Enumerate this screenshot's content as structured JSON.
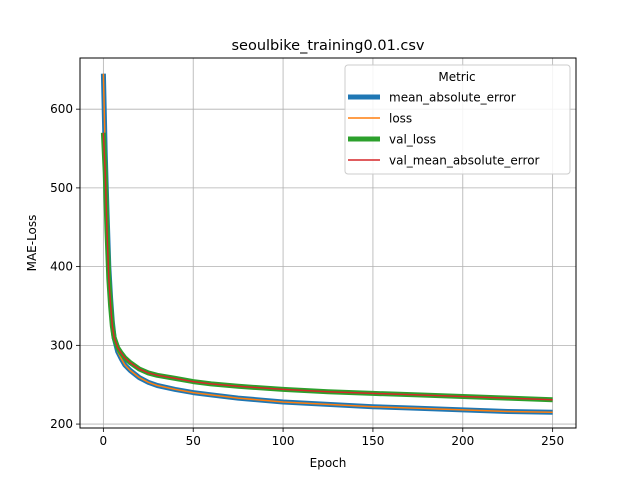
{
  "chart_data": {
    "type": "line",
    "title": "seoulbike_training0.01.csv",
    "xlabel": "Epoch",
    "ylabel": "MAE-Loss",
    "xlim": [
      -13,
      263
    ],
    "ylim": [
      195,
      665
    ],
    "xticks": [
      0,
      50,
      100,
      150,
      200,
      250
    ],
    "yticks": [
      200,
      300,
      400,
      500,
      600
    ],
    "grid": true,
    "legend": {
      "title": "Metric",
      "placement": "upper right"
    },
    "series": [
      {
        "name": "mean_absolute_error",
        "color": "#1f77b4",
        "style": "thick",
        "x": [
          0,
          1,
          2,
          3,
          4,
          5,
          6,
          8,
          10,
          12,
          15,
          20,
          25,
          30,
          40,
          50,
          60,
          75,
          100,
          125,
          150,
          175,
          200,
          225,
          250
        ],
        "y": [
          645,
          545,
          470,
          400,
          360,
          330,
          310,
          292,
          283,
          275,
          268,
          259,
          253,
          249,
          244,
          240,
          237,
          233,
          228,
          225,
          222,
          220,
          218,
          216,
          215
        ]
      },
      {
        "name": "loss",
        "color": "#ff7f0e",
        "style": "thin",
        "x": [
          0,
          1,
          2,
          3,
          4,
          5,
          6,
          8,
          10,
          12,
          15,
          20,
          25,
          30,
          40,
          50,
          60,
          75,
          100,
          125,
          150,
          175,
          200,
          225,
          250
        ],
        "y": [
          645,
          545,
          470,
          400,
          360,
          330,
          310,
          292,
          283,
          275,
          268,
          259,
          253,
          249,
          244,
          240,
          237,
          233,
          228,
          225,
          222,
          220,
          218,
          216,
          215
        ]
      },
      {
        "name": "val_loss",
        "color": "#2ca02c",
        "style": "thick",
        "x": [
          0,
          1,
          2,
          3,
          4,
          5,
          6,
          8,
          10,
          12,
          15,
          20,
          25,
          30,
          40,
          50,
          60,
          75,
          100,
          125,
          150,
          175,
          200,
          225,
          250
        ],
        "y": [
          570,
          520,
          445,
          385,
          350,
          325,
          310,
          297,
          290,
          284,
          278,
          270,
          265,
          262,
          258,
          254,
          251,
          248,
          244,
          241,
          239,
          237,
          235,
          233,
          231
        ]
      },
      {
        "name": "val_mean_absolute_error",
        "color": "#d62728",
        "style": "thin",
        "x": [
          0,
          1,
          2,
          3,
          4,
          5,
          6,
          8,
          10,
          12,
          15,
          20,
          25,
          30,
          40,
          50,
          60,
          75,
          100,
          125,
          150,
          175,
          200,
          225,
          250
        ],
        "y": [
          570,
          520,
          445,
          385,
          350,
          325,
          310,
          297,
          290,
          284,
          278,
          270,
          265,
          262,
          258,
          254,
          251,
          248,
          244,
          241,
          239,
          237,
          235,
          233,
          231
        ]
      }
    ]
  }
}
